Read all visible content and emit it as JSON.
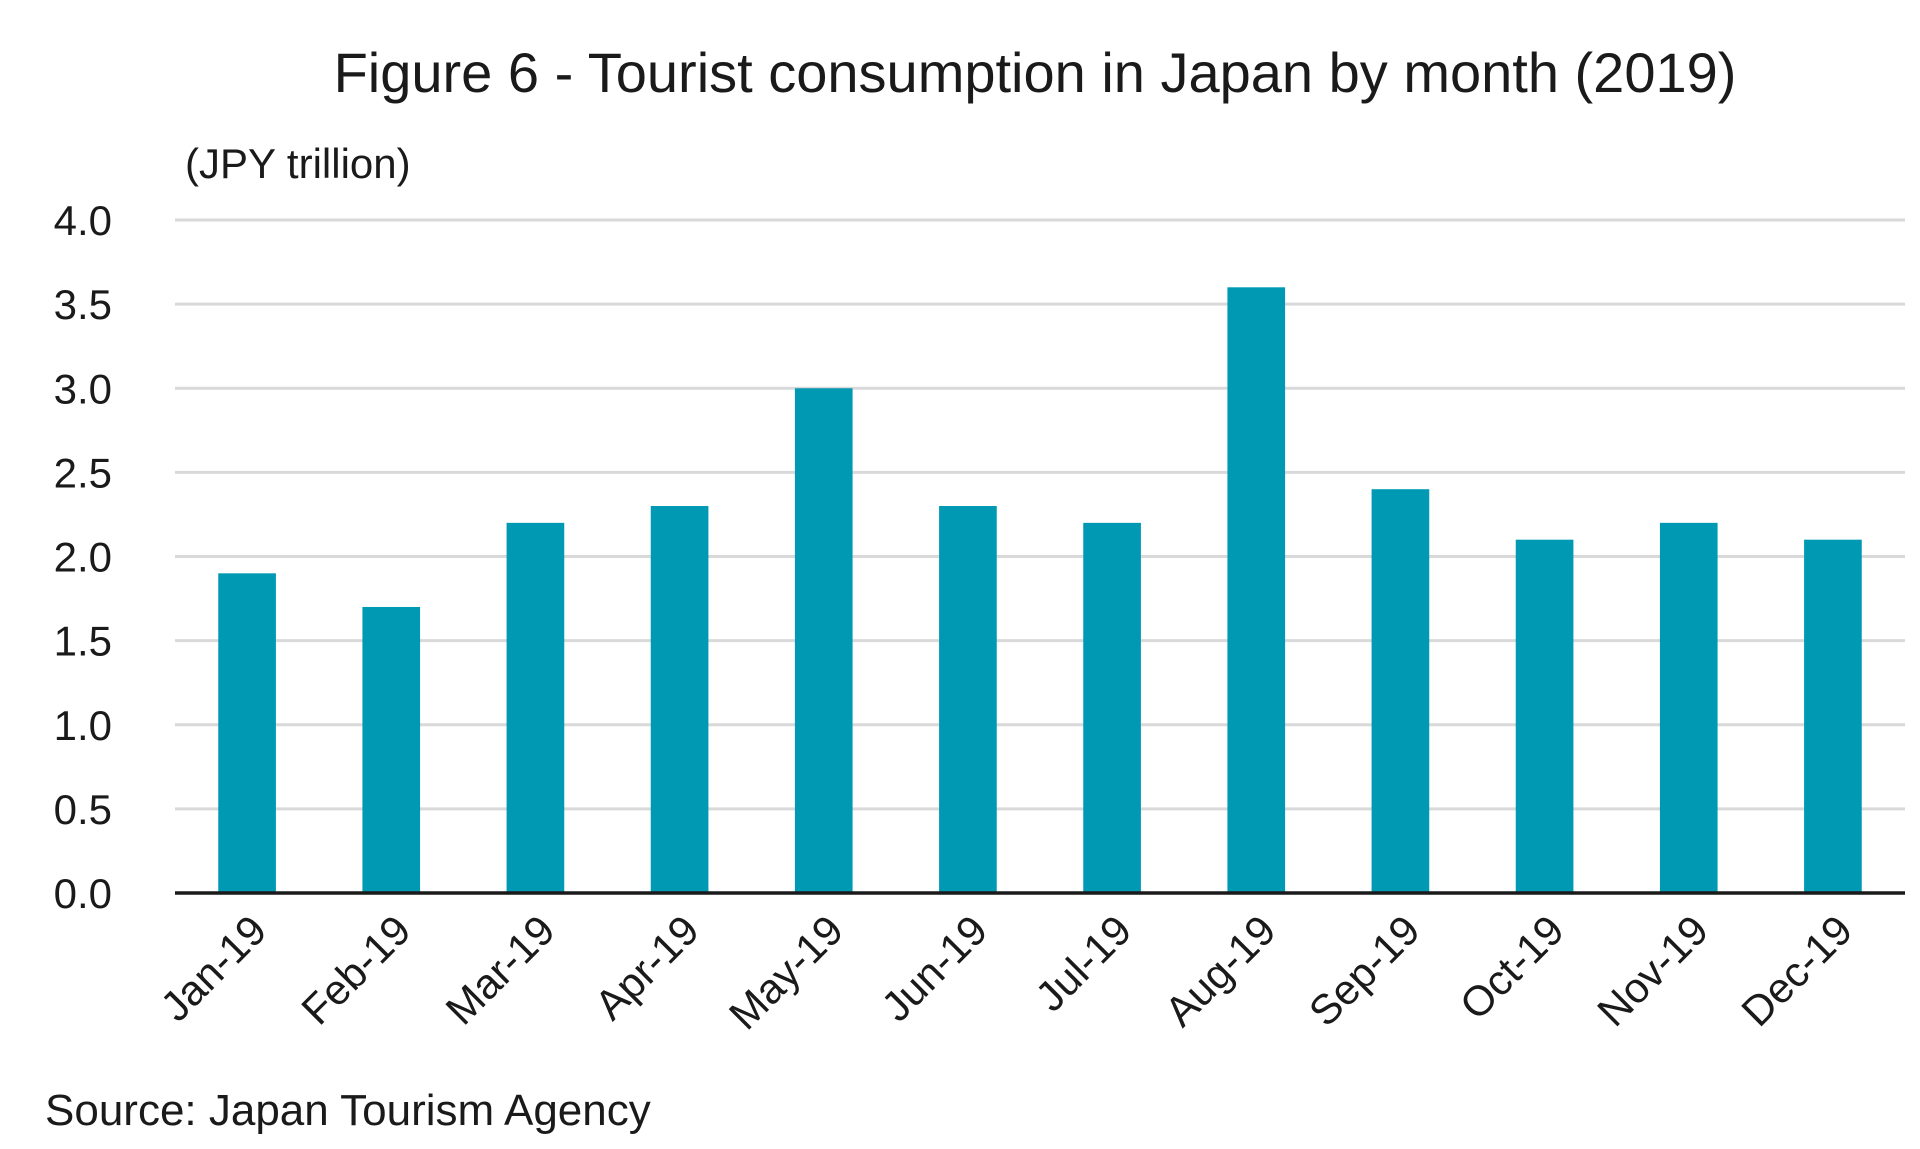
{
  "chart_data": {
    "type": "bar",
    "title": "Figure 6 - Tourist consumption in Japan by month (2019)",
    "unit_label": "(JPY trillion)",
    "xlabel": "",
    "ylabel": "(JPY trillion)",
    "categories": [
      "Jan-19",
      "Feb-19",
      "Mar-19",
      "Apr-19",
      "May-19",
      "Jun-19",
      "Jul-19",
      "Aug-19",
      "Sep-19",
      "Oct-19",
      "Nov-19",
      "Dec-19"
    ],
    "values": [
      1.9,
      1.7,
      2.2,
      2.3,
      3.0,
      2.3,
      2.2,
      3.6,
      2.4,
      2.1,
      2.2,
      2.1
    ],
    "ylim": [
      0,
      4.0
    ],
    "yticks": [
      "0.0",
      "0.5",
      "1.0",
      "1.5",
      "2.0",
      "2.5",
      "3.0",
      "3.5",
      "4.0"
    ],
    "grid": true,
    "legend": "none",
    "bar_color": "#0099b3",
    "source": "Source: Japan Tourism Agency"
  }
}
